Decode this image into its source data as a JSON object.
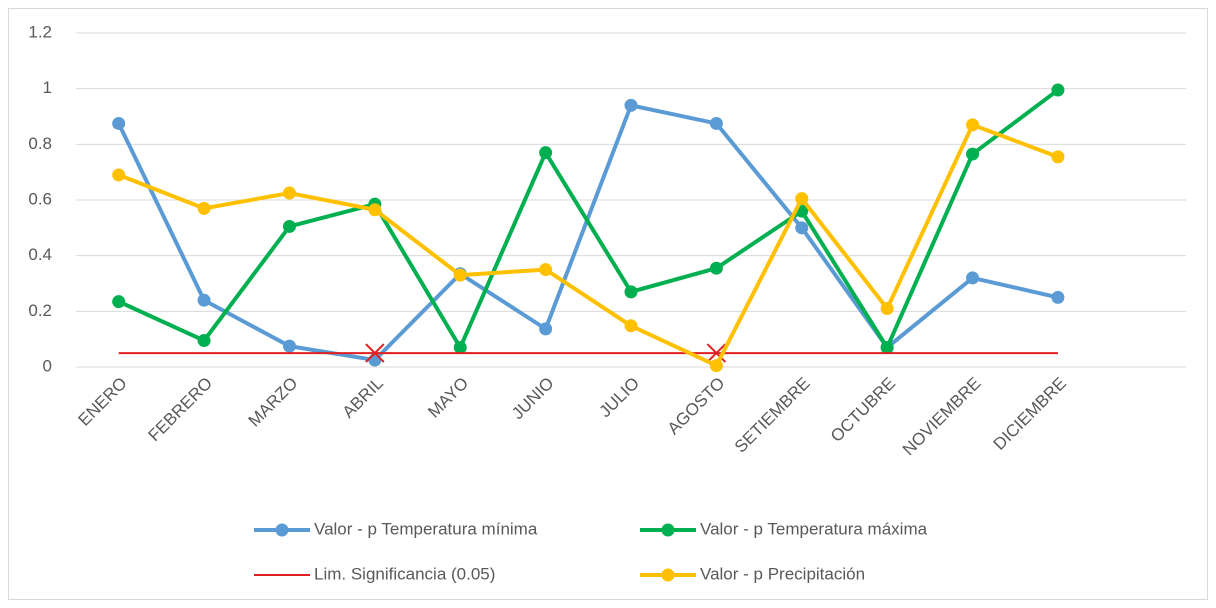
{
  "chart_data": {
    "type": "line",
    "categories": [
      "ENERO",
      "FEBRERO",
      "MARZO",
      "ABRIL",
      "MAYO",
      "JUNIO",
      "JULIO",
      "AGOSTO",
      "SETIEMBRE",
      "OCTUBRE",
      "NOVIEMBRE",
      "DICIEMBRE",
      null
    ],
    "series": [
      {
        "name": "Valor - p Temperatura mínima",
        "color": "#5b9bd5",
        "marker": "circle",
        "values": [
          0.875,
          0.24,
          0.075,
          0.025,
          0.335,
          0.137,
          0.94,
          0.875,
          0.5,
          0.07,
          0.32,
          0.25,
          null
        ]
      },
      {
        "name": "Valor - p Temperatura máxima",
        "color": "#00b050",
        "marker": "circle",
        "values": [
          0.235,
          0.095,
          0.505,
          0.585,
          0.07,
          0.77,
          0.27,
          0.355,
          0.56,
          0.07,
          0.765,
          0.995,
          null
        ]
      },
      {
        "name": "Lim. Significancia (0.05)",
        "color": "#e02020",
        "marker": "cross",
        "marker_indices": [
          3,
          7
        ],
        "values": [
          0.05,
          0.05,
          0.05,
          0.05,
          0.05,
          0.05,
          0.05,
          0.05,
          0.05,
          0.05,
          0.05,
          0.05,
          null
        ]
      },
      {
        "name": "Valor - p Precipitación",
        "color": "#ffc000",
        "marker": "circle",
        "values": [
          0.69,
          0.57,
          0.625,
          0.565,
          0.33,
          0.35,
          0.148,
          0.005,
          0.605,
          0.21,
          0.87,
          0.755,
          null
        ]
      }
    ],
    "ylim": [
      0,
      1.2
    ],
    "yticks": [
      0,
      0.2,
      0.4,
      0.6,
      0.8,
      1,
      1.2
    ],
    "grid": true,
    "legend": "bottom"
  }
}
